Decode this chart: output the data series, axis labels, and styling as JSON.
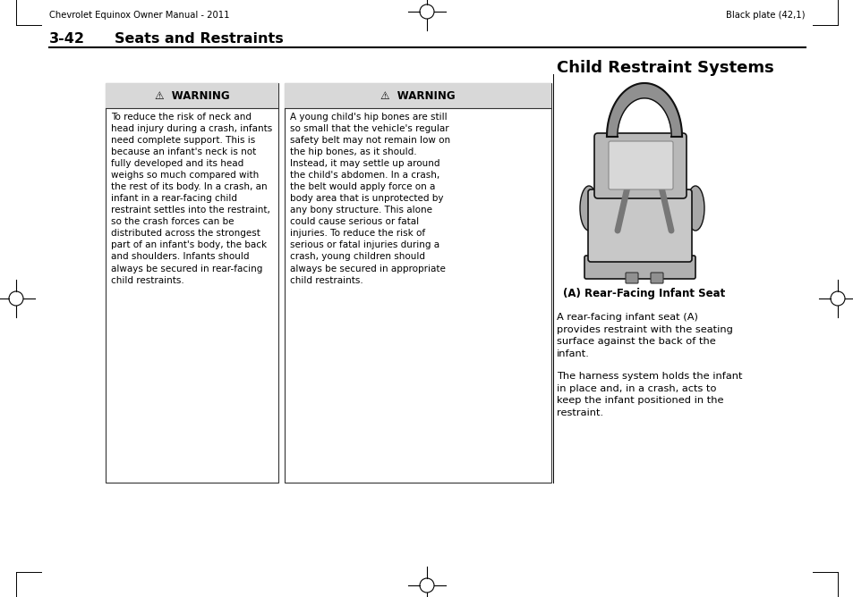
{
  "page_header_left": "Chevrolet Equinox Owner Manual - 2011",
  "page_header_right": "Black plate (42,1)",
  "section_number": "3-42",
  "section_title": "Seats and Restraints",
  "warning1_header": "⚠  WARNING",
  "warning1_body": "To reduce the risk of neck and\nhead injury during a crash, infants\nneed complete support. This is\nbecause an infant's neck is not\nfully developed and its head\nweighs so much compared with\nthe rest of its body. In a crash, an\ninfant in a rear-facing child\nrestraint settles into the restraint,\nso the crash forces can be\ndistributed across the strongest\npart of an infant's body, the back\nand shoulders. Infants should\nalways be secured in rear-facing\nchild restraints.",
  "warning2_header": "⚠  WARNING",
  "warning2_body": "A young child's hip bones are still\nso small that the vehicle's regular\nsafety belt may not remain low on\nthe hip bones, as it should.\nInstead, it may settle up around\nthe child's abdomen. In a crash,\nthe belt would apply force on a\nbody area that is unprotected by\nany bony structure. This alone\ncould cause serious or fatal\ninjuries. To reduce the risk of\nserious or fatal injuries during a\ncrash, young children should\nalways be secured in appropriate\nchild restraints.",
  "right_title": "Child Restraint Systems",
  "caption": "(A) Rear-Facing Infant Seat",
  "right_body1": "A rear-facing infant seat (A)\nprovides restraint with the seating\nsurface against the back of the\ninfant.",
  "right_body2": "The harness system holds the infant\nin place and, in a crash, acts to\nkeep the infant positioned in the\nrestraint.",
  "page_bg": "#ffffff",
  "warning_header_bg": "#c0c0c0",
  "warning_box_border": "#555555",
  "text_color": "#000000",
  "header_bg": "#d8d8d8"
}
